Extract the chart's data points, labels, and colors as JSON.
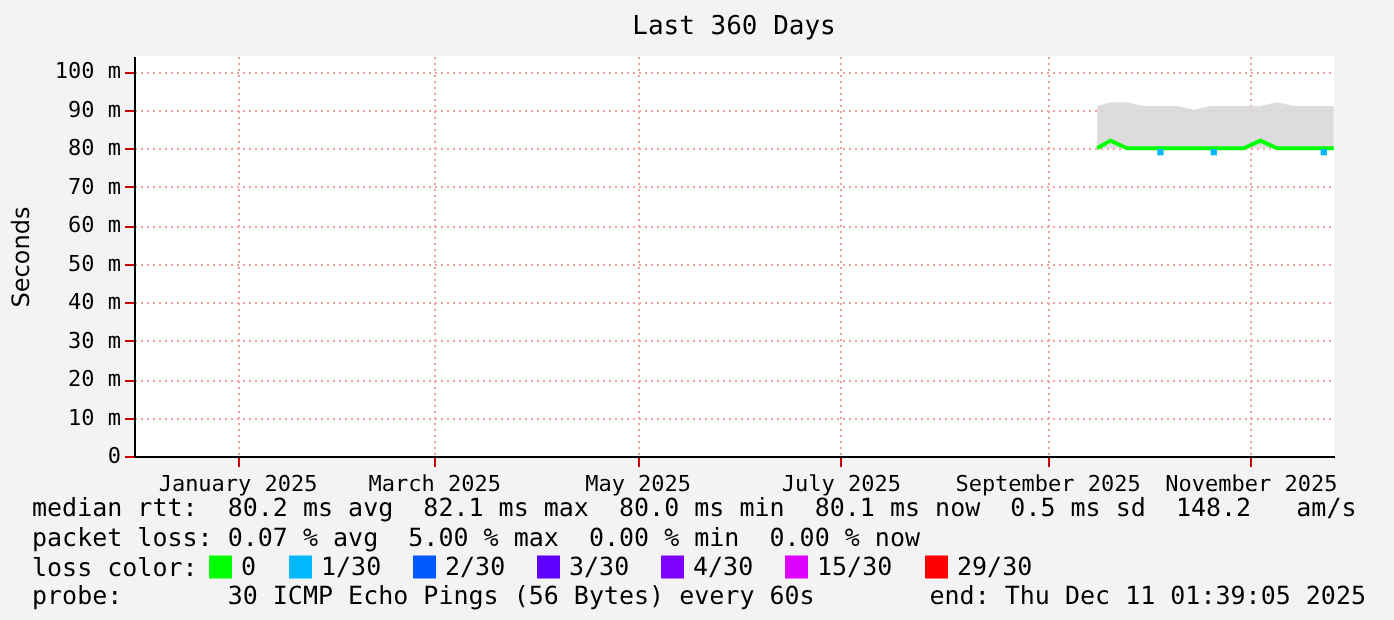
{
  "chart_data": {
    "type": "line",
    "title": "Last 360 Days",
    "ylabel": "Seconds",
    "legend_title": "loss color:",
    "x": [
      "2025-10-01",
      "2025-10-05",
      "2025-10-10",
      "2025-10-15",
      "2025-10-20",
      "2025-10-25",
      "2025-10-30",
      "2025-11-04",
      "2025-11-09",
      "2025-11-14",
      "2025-11-19",
      "2025-11-24",
      "2025-11-29",
      "2025-12-04",
      "2025-12-09",
      "2025-12-11"
    ],
    "series": [
      {
        "name": "0",
        "color": "#00ff00",
        "values": [
          80,
          82,
          80,
          80,
          80,
          80,
          80,
          80,
          80,
          80,
          82,
          80,
          80,
          80,
          80,
          80
        ],
        "lower": [
          80,
          80,
          80,
          80,
          80,
          80,
          80,
          80,
          80,
          80,
          80,
          80,
          80,
          80,
          80,
          80
        ],
        "upper": [
          91,
          92,
          92,
          91,
          91,
          91,
          90,
          91,
          91,
          91,
          91,
          92,
          91,
          91,
          91,
          91
        ]
      },
      {
        "name": "1/30",
        "color": "#00b8ff",
        "type": "scatter",
        "x": [
          "2025-10-20",
          "2025-11-05",
          "2025-12-08"
        ],
        "values": [
          79,
          79,
          79
        ]
      },
      {
        "name": "2/30",
        "color": "#0059ff",
        "type": "scatter",
        "values": [
          null,
          null,
          null,
          null,
          null,
          null,
          null,
          null,
          null,
          null,
          null,
          null,
          null,
          null,
          null,
          null
        ]
      },
      {
        "name": "3/30",
        "color": "#5e00ff",
        "type": "scatter",
        "values": [
          null,
          null,
          null,
          null,
          null,
          null,
          null,
          null,
          null,
          null,
          null,
          null,
          null,
          null,
          null,
          null
        ]
      },
      {
        "name": "4/30",
        "color": "#7e00ff",
        "type": "scatter",
        "values": [
          null,
          null,
          null,
          null,
          null,
          null,
          null,
          null,
          null,
          null,
          null,
          null,
          null,
          null,
          null,
          null
        ]
      },
      {
        "name": "15/30",
        "color": "#dd00ff",
        "type": "scatter",
        "values": [
          null,
          null,
          null,
          null,
          null,
          null,
          null,
          null,
          null,
          null,
          null,
          null,
          null,
          null,
          null,
          null
        ]
      },
      {
        "name": "29/30",
        "color": "#ff0000",
        "type": "scatter",
        "values": [
          null,
          null,
          null,
          null,
          null,
          null,
          null,
          null,
          null,
          null,
          null,
          null,
          null,
          null,
          null,
          null
        ]
      }
    ],
    "xlim": [
      "2024-12-16T01:39",
      "2025-12-11T01:39"
    ],
    "xticks": [
      {
        "value": "2025-01-16",
        "label": "January 2025"
      },
      {
        "value": "2025-03-16",
        "label": "March 2025"
      },
      {
        "value": "2025-05-16",
        "label": "May 2025"
      },
      {
        "value": "2025-07-16",
        "label": "July 2025"
      },
      {
        "value": "2025-09-16",
        "label": "September 2025"
      },
      {
        "value": "2025-11-16",
        "label": "November 2025"
      }
    ],
    "ylim": [
      0,
      104
    ],
    "yticks": [
      0,
      {
        "value": 10,
        "label": "10 m"
      },
      {
        "value": 20,
        "label": "20 m"
      },
      {
        "value": 30,
        "label": "30 m"
      },
      {
        "value": 40,
        "label": "40 m"
      },
      {
        "value": 50,
        "label": "50 m"
      },
      {
        "value": 60,
        "label": "60 m"
      },
      {
        "value": 70,
        "label": "70 m"
      },
      {
        "value": 80,
        "label": "80 m"
      },
      {
        "value": 90,
        "label": "90 m"
      },
      {
        "value": 100,
        "label": "100 m"
      }
    ],
    "grid": true,
    "legend": "bottom",
    "annotations": [
      "median rtt:  80.2 ms avg  82.1 ms max  80.0 ms min  80.1 ms now  0.5 ms sd  148.2   am/s",
      "packet loss: 0.07 % avg  5.00 % max  0.00 % min  0.00 % now",
      "probe:       30 ICMP Echo Pings (56 Bytes) every 60s",
      "end: Thu Dec 11 01:39:05 2025"
    ]
  }
}
